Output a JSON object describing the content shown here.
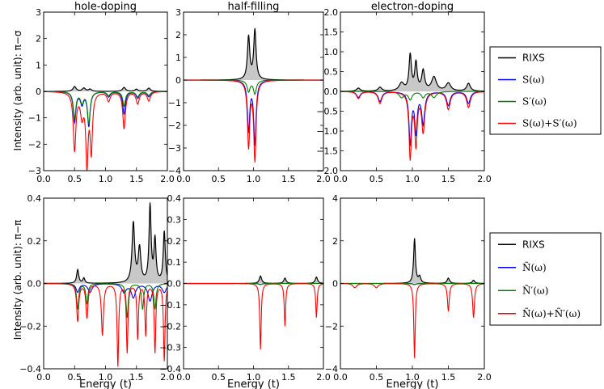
{
  "colors": {
    "rixs": "#000000",
    "rixs_fill": "#c8c8c8",
    "blue": "#0000ff",
    "green": "#008000",
    "red": "#ff0000"
  },
  "row_labels": {
    "top": "Intensity (arb. unit): π−σ",
    "bottom": "Intensity (arb. unit): π−π"
  },
  "legends": {
    "top": [
      {
        "label": "RIXS",
        "color": "#000000",
        "plain": true
      },
      {
        "label": "S(ω)",
        "color": "#0000ff"
      },
      {
        "label": "S′(ω)",
        "color": "#008000"
      },
      {
        "label": "S(ω)+S′(ω)",
        "color": "#ff0000"
      }
    ],
    "bottom": [
      {
        "label": "RIXS",
        "color": "#000000",
        "plain": true
      },
      {
        "label": "Ñ(ω)",
        "color": "#0000ff"
      },
      {
        "label": "Ñ′(ω)",
        "color": "#008000"
      },
      {
        "label": "Ñ(ω)+Ñ′(ω)",
        "color": "#ff0000"
      }
    ]
  },
  "chart_data": [
    {
      "type": "line",
      "title": "hole-doping",
      "xlabel": "",
      "ylabel": "Intensity (arb. unit): π−σ",
      "xlim": [
        0,
        2
      ],
      "ylim": [
        -3,
        3
      ],
      "xticks": [
        "0.0",
        "0.5",
        "1.0",
        "1.5",
        "2.0"
      ],
      "yticks": [
        "−3",
        "−2",
        "−1",
        "0",
        "1",
        "2",
        "3"
      ],
      "series": [
        {
          "name": "RIXS",
          "peaks": [
            [
              0.5,
              0.18,
              0.03
            ],
            [
              0.65,
              0.12,
              0.03
            ],
            [
              0.75,
              0.08,
              0.03
            ],
            [
              1.3,
              0.15,
              0.03
            ],
            [
              1.5,
              0.08,
              0.03
            ],
            [
              1.7,
              0.12,
              0.03
            ]
          ]
        },
        {
          "name": "S(ω)",
          "peaks": [
            [
              0.5,
              -1.15,
              0.025
            ],
            [
              0.62,
              -0.45,
              0.03
            ],
            [
              0.73,
              -1.3,
              0.025
            ],
            [
              1.05,
              -0.2,
              0.03
            ],
            [
              1.3,
              -0.85,
              0.025
            ],
            [
              1.52,
              -0.25,
              0.03
            ],
            [
              1.7,
              -0.2,
              0.03
            ]
          ]
        },
        {
          "name": "S′(ω)",
          "peaks": [
            [
              0.5,
              -1.0,
              0.025
            ],
            [
              0.62,
              -0.4,
              0.03
            ],
            [
              0.73,
              -1.2,
              0.025
            ],
            [
              1.05,
              -0.15,
              0.03
            ],
            [
              1.3,
              -0.55,
              0.025
            ],
            [
              1.52,
              -0.2,
              0.03
            ],
            [
              1.7,
              -0.15,
              0.03
            ]
          ]
        },
        {
          "name": "S(ω)+S′(ω)",
          "peaks": [
            [
              0.5,
              -2.2,
              0.025
            ],
            [
              0.62,
              -0.85,
              0.03
            ],
            [
              0.7,
              -2.7,
              0.022
            ],
            [
              0.77,
              -2.2,
              0.022
            ],
            [
              1.05,
              -0.35,
              0.03
            ],
            [
              1.3,
              -1.4,
              0.025
            ],
            [
              1.52,
              -0.45,
              0.03
            ],
            [
              1.7,
              -0.35,
              0.03
            ]
          ]
        }
      ]
    },
    {
      "type": "line",
      "title": "half-filling",
      "xlabel": "",
      "ylabel": "",
      "xlim": [
        0,
        2
      ],
      "ylim": [
        -4,
        3
      ],
      "xticks": [
        "0.0",
        "0.5",
        "1.0",
        "1.5",
        "2.0"
      ],
      "yticks": [
        "−4",
        "−3",
        "−2",
        "−1",
        "0",
        "1",
        "2",
        "3"
      ],
      "series": [
        {
          "name": "RIXS",
          "peaks": [
            [
              0.93,
              1.9,
              0.02
            ],
            [
              1.02,
              2.2,
              0.02
            ]
          ]
        },
        {
          "name": "S(ω)",
          "peaks": [
            [
              0.93,
              -2.2,
              0.02
            ],
            [
              1.02,
              -2.8,
              0.02
            ]
          ]
        },
        {
          "name": "S′(ω)",
          "peaks": [
            [
              0.93,
              -0.5,
              0.025
            ],
            [
              1.02,
              -0.6,
              0.025
            ]
          ]
        },
        {
          "name": "S(ω)+S′(ω)",
          "peaks": [
            [
              0.93,
              -2.9,
              0.02
            ],
            [
              1.02,
              -3.5,
              0.02
            ]
          ]
        }
      ]
    },
    {
      "type": "line",
      "title": "electron-doping",
      "xlabel": "",
      "ylabel": "",
      "xlim": [
        0,
        2
      ],
      "ylim": [
        -2,
        2
      ],
      "xticks": [
        "0.0",
        "0.5",
        "1.0",
        "1.5",
        "2.0"
      ],
      "yticks": [
        "−2.0",
        "−1.5",
        "−1.0",
        "−0.5",
        "0.0",
        "0.5",
        "1.0",
        "1.5",
        "2.0"
      ],
      "series": [
        {
          "name": "RIXS",
          "peaks": [
            [
              0.25,
              0.08,
              0.03
            ],
            [
              0.55,
              0.1,
              0.03
            ],
            [
              0.85,
              0.2,
              0.04
            ],
            [
              0.97,
              0.9,
              0.02
            ],
            [
              1.05,
              0.7,
              0.02
            ],
            [
              1.15,
              0.5,
              0.025
            ],
            [
              1.3,
              0.35,
              0.04
            ],
            [
              1.5,
              0.2,
              0.04
            ],
            [
              1.78,
              0.2,
              0.03
            ]
          ]
        },
        {
          "name": "S(ω)",
          "peaks": [
            [
              0.25,
              -0.15,
              0.03
            ],
            [
              0.55,
              -0.25,
              0.03
            ],
            [
              0.97,
              -1.3,
              0.02
            ],
            [
              1.05,
              -1.0,
              0.02
            ],
            [
              1.15,
              -0.8,
              0.025
            ],
            [
              1.5,
              -0.35,
              0.03
            ],
            [
              1.78,
              -0.3,
              0.03
            ]
          ]
        },
        {
          "name": "S′(ω)",
          "peaks": [
            [
              0.85,
              -0.15,
              0.04
            ],
            [
              0.97,
              -0.2,
              0.03
            ],
            [
              1.15,
              -0.15,
              0.03
            ],
            [
              1.3,
              -0.15,
              0.04
            ]
          ]
        },
        {
          "name": "S(ω)+S′(ω)",
          "peaks": [
            [
              0.25,
              -0.18,
              0.03
            ],
            [
              0.55,
              -0.3,
              0.03
            ],
            [
              0.97,
              -1.65,
              0.02
            ],
            [
              1.05,
              -1.3,
              0.02
            ],
            [
              1.15,
              -1.0,
              0.025
            ],
            [
              1.5,
              -0.45,
              0.03
            ],
            [
              1.78,
              -0.4,
              0.03
            ]
          ]
        }
      ]
    },
    {
      "type": "line",
      "title": "",
      "xlabel": "Energy (t)",
      "ylabel": "Intensity (arb. unit): π−π",
      "xlim": [
        0,
        2
      ],
      "ylim": [
        -0.5,
        0.5
      ],
      "xticks": [
        "0.0",
        "0.5",
        "1.0",
        "1.5",
        "2.0"
      ],
      "yticks": [
        "−0.4",
        "−0.2",
        "0.0",
        "0.2",
        "0.4"
      ],
      "series": [
        {
          "name": "RIXS",
          "peaks": [
            [
              0.55,
              0.08,
              0.02
            ],
            [
              0.65,
              0.03,
              0.02
            ],
            [
              1.45,
              0.35,
              0.025
            ],
            [
              1.55,
              0.2,
              0.025
            ],
            [
              1.72,
              0.45,
              0.02
            ],
            [
              1.8,
              0.25,
              0.02
            ],
            [
              1.95,
              0.3,
              0.02
            ]
          ]
        },
        {
          "name": "Ñ(ω)",
          "peaks": [
            [
              0.55,
              -0.05,
              0.03
            ],
            [
              0.75,
              -0.05,
              0.04
            ],
            [
              1.3,
              -0.05,
              0.04
            ],
            [
              1.45,
              -0.08,
              0.04
            ],
            [
              1.72,
              -0.1,
              0.04
            ],
            [
              1.95,
              -0.05,
              0.04
            ]
          ]
        },
        {
          "name": "Ñ′(ω)",
          "peaks": [
            [
              0.55,
              -0.15,
              0.02
            ],
            [
              0.7,
              -0.12,
              0.02
            ],
            [
              1.35,
              -0.2,
              0.02
            ],
            [
              1.6,
              -0.15,
              0.02
            ],
            [
              1.8,
              -0.15,
              0.02
            ]
          ]
        },
        {
          "name": "Ñ(ω)+Ñ′(ω)",
          "peaks": [
            [
              0.55,
              -0.22,
              0.02
            ],
            [
              0.7,
              -0.2,
              0.02
            ],
            [
              0.95,
              -0.3,
              0.02
            ],
            [
              1.2,
              -0.48,
              0.015
            ],
            [
              1.35,
              -0.4,
              0.015
            ],
            [
              1.52,
              -0.32,
              0.015
            ],
            [
              1.65,
              -0.3,
              0.015
            ],
            [
              1.8,
              -0.4,
              0.015
            ],
            [
              1.95,
              -0.45,
              0.015
            ]
          ]
        }
      ]
    },
    {
      "type": "line",
      "title": "",
      "xlabel": "Energy (t)",
      "ylabel": "",
      "xlim": [
        0,
        2
      ],
      "ylim": [
        -0.4,
        0.4
      ],
      "xticks": [
        "0.0",
        "0.5",
        "1.0",
        "1.5",
        "2.0"
      ],
      "yticks": [
        "−0.4",
        "−0.3",
        "−0.2",
        "−0.1",
        "0.0",
        "0.1",
        "0.2",
        "0.3",
        "0.4"
      ],
      "series": [
        {
          "name": "RIXS",
          "peaks": [
            [
              1.1,
              0.035,
              0.02
            ],
            [
              1.45,
              0.025,
              0.02
            ],
            [
              1.9,
              0.03,
              0.02
            ]
          ]
        },
        {
          "name": "Ñ(ω)",
          "peaks": [
            [
              1.1,
              -0.005,
              0.03
            ]
          ]
        },
        {
          "name": "Ñ′(ω)",
          "peaks": [
            [
              1.1,
              -0.005,
              0.03
            ]
          ]
        },
        {
          "name": "Ñ(ω)+Ñ′(ω)",
          "peaks": [
            [
              1.1,
              -0.31,
              0.012
            ],
            [
              1.45,
              -0.2,
              0.012
            ],
            [
              1.9,
              -0.16,
              0.012
            ]
          ]
        }
      ]
    },
    {
      "type": "line",
      "title": "",
      "xlabel": "Energy (t)",
      "ylabel": "",
      "xlim": [
        0,
        2
      ],
      "ylim": [
        -4,
        4
      ],
      "xticks": [
        "0.0",
        "0.5",
        "1.0",
        "1.5",
        "2.0"
      ],
      "yticks": [
        "−4",
        "−2",
        "0",
        "2",
        "4"
      ],
      "series": [
        {
          "name": "RIXS",
          "peaks": [
            [
              1.03,
              2.1,
              0.015
            ],
            [
              1.1,
              0.3,
              0.02
            ],
            [
              1.5,
              0.25,
              0.02
            ],
            [
              1.85,
              0.15,
              0.02
            ]
          ]
        },
        {
          "name": "Ñ(ω)",
          "peaks": [
            [
              1.03,
              -0.05,
              0.03
            ]
          ]
        },
        {
          "name": "Ñ′(ω)",
          "peaks": [
            [
              1.03,
              -0.05,
              0.03
            ]
          ]
        },
        {
          "name": "Ñ(ω)+Ñ′(ω)",
          "peaks": [
            [
              0.2,
              -0.2,
              0.03
            ],
            [
              0.5,
              -0.2,
              0.03
            ],
            [
              1.03,
              -3.5,
              0.012
            ],
            [
              1.5,
              -1.3,
              0.015
            ],
            [
              1.85,
              -1.6,
              0.015
            ]
          ]
        }
      ]
    }
  ]
}
